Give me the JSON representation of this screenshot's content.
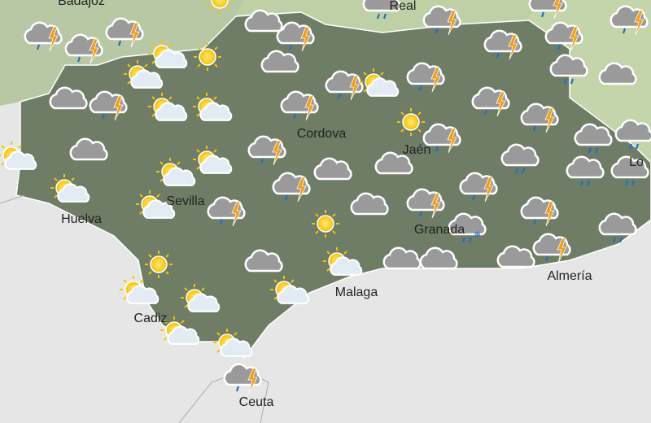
{
  "places": [
    "Badajoz",
    "Real",
    "Cordova",
    "Jaén",
    "Sevilla",
    "Huelva",
    "Granada",
    "Malaga",
    "Almería",
    "Cadiz",
    "Ceuta",
    "Lo"
  ]
}
